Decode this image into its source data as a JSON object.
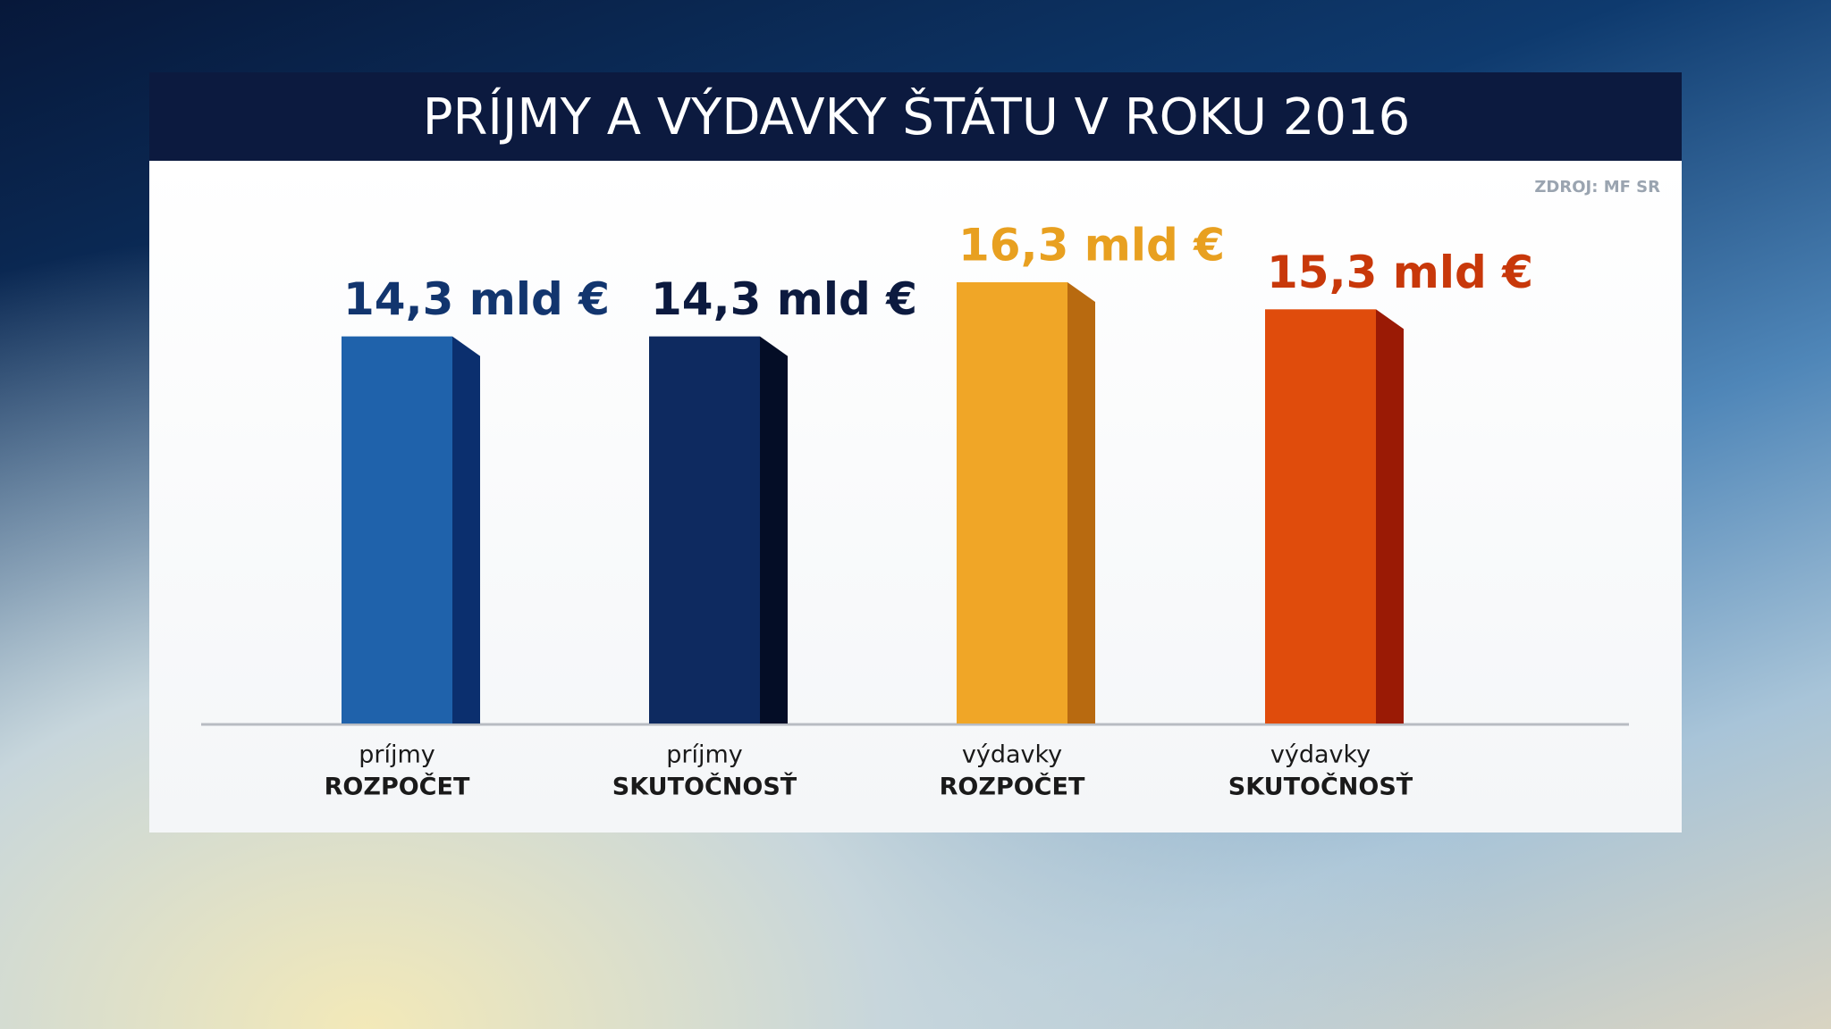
{
  "chart_data": {
    "type": "bar",
    "title": "PRÍJMY A VÝDAVKY ŠTÁTU V ROKU 2016",
    "source": "ZDROJ: MF SR",
    "categories": [
      [
        "príjmy",
        "ROZPOČET"
      ],
      [
        "príjmy",
        "SKUTOČNOSŤ"
      ],
      [
        "výdavky",
        "ROZPOČET"
      ],
      [
        "výdavky",
        "SKUTOČNOSŤ"
      ]
    ],
    "values": [
      14.3,
      14.3,
      16.3,
      15.3
    ],
    "value_labels": [
      "14,3 mld €",
      "14,3 mld €",
      "16,3 mld €",
      "15,3 mld €"
    ],
    "colors": [
      "#1f62ab",
      "#0e2a60",
      "#f0a627",
      "#e04c0c"
    ],
    "side_colors": [
      "#0b2f6e",
      "#040d26",
      "#b86a10",
      "#9a1a05"
    ],
    "label_colors": [
      "#12356e",
      "#0c1a3f",
      "#e8a020",
      "#c8380a"
    ]
  }
}
